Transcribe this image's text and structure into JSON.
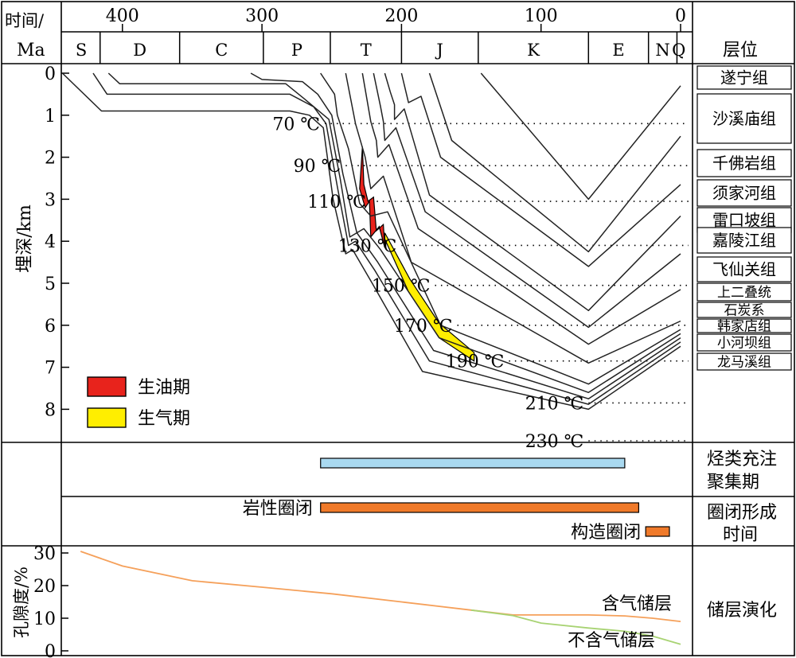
{
  "chart_data": {
    "type": "burial-history",
    "header": {
      "time_label_line1": "时间/",
      "time_label_line2": "Ma",
      "horizon_header": "层位"
    },
    "time_axis": {
      "unit": "Ma",
      "range": [
        430,
        0
      ],
      "ticks": [
        400,
        300,
        200,
        100,
        0
      ]
    },
    "periods": [
      {
        "label": "S",
        "start": 443,
        "end": 416
      },
      {
        "label": "D",
        "start": 416,
        "end": 359
      },
      {
        "label": "C",
        "start": 359,
        "end": 299
      },
      {
        "label": "P",
        "start": 299,
        "end": 251
      },
      {
        "label": "T",
        "start": 251,
        "end": 200
      },
      {
        "label": "J",
        "start": 200,
        "end": 145
      },
      {
        "label": "K",
        "start": 145,
        "end": 66
      },
      {
        "label": "E",
        "start": 66,
        "end": 23
      },
      {
        "label": "N",
        "start": 23,
        "end": 2.6
      },
      {
        "label": "Q",
        "start": 2.6,
        "end": 0
      }
    ],
    "depth_axis": {
      "label": "埋深/km",
      "range": [
        0,
        9
      ],
      "ticks": [
        0,
        1,
        2,
        3,
        4,
        5,
        6,
        7,
        8
      ]
    },
    "horizons": [
      "遂宁组",
      "沙溪庙组",
      "千佛岩组",
      "须家河组",
      "雷口坡组",
      "嘉陵江组",
      "飞仙关组",
      "上二叠统",
      "石炭系",
      "韩家店组",
      "小河坝组",
      "龙马溪组"
    ],
    "burial_curves": [
      {
        "points": [
          [
            143,
            0
          ],
          [
            66,
            3.0
          ],
          [
            0,
            0.3
          ]
        ]
      },
      {
        "points": [
          [
            180,
            0
          ],
          [
            164,
            1.6
          ],
          [
            66,
            4.25
          ],
          [
            0,
            1.5
          ]
        ]
      },
      {
        "points": [
          [
            200,
            0
          ],
          [
            195,
            0.7
          ],
          [
            186,
            0.55
          ],
          [
            172,
            2.0
          ],
          [
            66,
            4.6
          ],
          [
            0,
            2.65
          ]
        ]
      },
      {
        "points": [
          [
            212,
            0
          ],
          [
            208,
            0.45
          ],
          [
            205,
            0.75
          ],
          [
            205,
            1.1
          ],
          [
            198,
            0.85
          ],
          [
            180,
            2.9
          ],
          [
            66,
            5.65
          ],
          [
            0,
            3.4
          ]
        ]
      },
      {
        "points": [
          [
            220,
            0
          ],
          [
            215,
            0.8
          ],
          [
            213,
            1.15
          ],
          [
            212,
            1.6
          ],
          [
            204,
            1.3
          ],
          [
            183,
            3.3
          ],
          [
            66,
            6.05
          ],
          [
            0,
            4.3
          ]
        ]
      },
      {
        "points": [
          [
            228,
            0
          ],
          [
            222,
            1.15
          ],
          [
            218,
            1.6
          ],
          [
            217,
            2.0
          ],
          [
            209,
            1.7
          ],
          [
            188,
            3.7
          ],
          [
            66,
            6.45
          ],
          [
            0,
            5.15
          ]
        ]
      },
      {
        "points": [
          [
            240,
            0
          ],
          [
            233,
            1.2
          ],
          [
            226,
            2.0
          ],
          [
            222,
            2.75
          ],
          [
            213,
            2.45
          ],
          [
            193,
            4.5
          ],
          [
            66,
            6.9
          ],
          [
            0,
            5.9
          ]
        ]
      },
      {
        "points": [
          [
            258,
            0
          ],
          [
            248,
            0.5
          ],
          [
            246,
            1.0
          ],
          [
            238,
            1.8
          ],
          [
            230,
            3.1
          ],
          [
            222,
            3.4
          ],
          [
            210,
            3.3
          ],
          [
            172,
            6.0
          ],
          [
            66,
            7.4
          ],
          [
            0,
            6.1
          ]
        ]
      },
      {
        "points": [
          [
            308,
            0
          ],
          [
            300,
            0.15
          ],
          [
            271,
            0.2
          ],
          [
            260,
            0.5
          ],
          [
            250,
            1.0
          ],
          [
            242,
            2.4
          ],
          [
            232,
            3.8
          ],
          [
            227,
            3.7
          ],
          [
            215,
            4.2
          ],
          [
            173,
            6.3
          ],
          [
            66,
            7.6
          ],
          [
            0,
            6.2
          ]
        ]
      },
      {
        "points": [
          [
            410,
            0
          ],
          [
            402,
            0.25
          ],
          [
            283,
            0.25
          ],
          [
            270,
            0.6
          ],
          [
            252,
            1.1
          ],
          [
            244,
            2.5
          ],
          [
            237,
            3.9
          ],
          [
            232,
            3.8
          ],
          [
            217,
            4.5
          ],
          [
            177,
            6.6
          ],
          [
            66,
            7.75
          ],
          [
            0,
            6.3
          ]
        ]
      },
      {
        "points": [
          [
            421,
            0
          ],
          [
            411,
            0.5
          ],
          [
            280,
            0.5
          ],
          [
            263,
            0.8
          ],
          [
            254,
            1.2
          ],
          [
            246,
            2.7
          ],
          [
            238,
            4.1
          ],
          [
            233,
            4.0
          ],
          [
            219,
            4.7
          ],
          [
            180,
            6.85
          ],
          [
            66,
            7.88
          ],
          [
            0,
            6.4
          ]
        ]
      },
      {
        "points": [
          [
            443,
            0
          ],
          [
            415,
            0.9
          ],
          [
            280,
            0.9
          ],
          [
            266,
            1.0
          ],
          [
            256,
            1.3
          ],
          [
            249,
            3.0
          ],
          [
            240,
            4.3
          ],
          [
            235,
            4.2
          ],
          [
            221,
            5.0
          ],
          [
            185,
            7.1
          ],
          [
            66,
            8.0
          ],
          [
            0,
            6.5
          ]
        ]
      }
    ],
    "isotherms": [
      {
        "label": "70 ℃",
        "depth": 1.2,
        "from": 255
      },
      {
        "label": "90 ℃",
        "depth": 2.2,
        "from": 240
      },
      {
        "label": "110 ℃",
        "depth": 3.05,
        "from": 222
      },
      {
        "label": "130 ℃",
        "depth": 4.1,
        "from": 200
      },
      {
        "label": "150 ℃",
        "depth": 5.05,
        "from": 176
      },
      {
        "label": "170 ℃",
        "depth": 6.0,
        "from": 160
      },
      {
        "label": "190 ℃",
        "depth": 6.85,
        "from": 123
      },
      {
        "label": "210 ℃",
        "depth": 7.85,
        "from": 66
      },
      {
        "label": "230 ℃",
        "depth": 8.75,
        "from": 66
      }
    ],
    "oil_window": {
      "name": "生油期",
      "color": "#e8231c",
      "polygon": [
        [
          228,
          1.75
        ],
        [
          230,
          2.75
        ],
        [
          226,
          3.2
        ],
        [
          223,
          3.05
        ],
        [
          222,
          3.9
        ],
        [
          216,
          3.65
        ],
        [
          212,
          4.15
        ],
        [
          213,
          3.6
        ],
        [
          218,
          3.75
        ],
        [
          220,
          2.95
        ],
        [
          224,
          3.05
        ],
        [
          227,
          2.65
        ]
      ]
    },
    "gas_window": {
      "name": "生气期",
      "color": "#ffee00",
      "polygon": [
        [
          212,
          4.15
        ],
        [
          216,
          3.65
        ],
        [
          195,
          5.2
        ],
        [
          173,
          6.3
        ],
        [
          148,
          6.85
        ],
        [
          148,
          6.65
        ],
        [
          173,
          5.95
        ],
        [
          194,
          4.9
        ],
        [
          212,
          3.8
        ]
      ]
    },
    "legend": [
      {
        "label": "生油期",
        "color": "#e8231c"
      },
      {
        "label": "生气期",
        "color": "#ffee00"
      }
    ],
    "hydrocarbon_charging": {
      "label_line1": "烃类充注",
      "label_line2": "聚集期",
      "start": 258,
      "end": 40,
      "color": "#a9d9f0"
    },
    "trap_formation": {
      "label_line1": "圈闭形成",
      "label_line2": "时间",
      "bars": [
        {
          "label": "岩性圈闭",
          "start": 258,
          "end": 30,
          "color": "#f07a2a"
        },
        {
          "label": "构造圈闭",
          "start": 25,
          "end": 8,
          "color": "#f07a2a"
        }
      ]
    },
    "reservoir_evolution": {
      "label": "储层演化",
      "ylabel": "孔隙度/%",
      "ylim": [
        0,
        32
      ],
      "yticks": [
        0,
        10,
        20,
        30
      ],
      "series": [
        {
          "name": "含气储层",
          "color": "#f5a05a",
          "x": [
            430,
            400,
            350,
            300,
            250,
            200,
            150,
            120,
            100,
            66,
            40,
            20,
            0
          ],
          "y": [
            30.5,
            26,
            21.5,
            19.5,
            17.5,
            15,
            12.5,
            11.0,
            11.0,
            11.0,
            10.7,
            10.0,
            9.0
          ]
        },
        {
          "name": "不含气储层",
          "color": "#a8d373",
          "x": [
            150,
            120,
            100,
            66,
            40,
            20,
            0
          ],
          "y": [
            12.5,
            10.8,
            8.5,
            7.0,
            6.0,
            4.5,
            2.0
          ]
        }
      ]
    }
  }
}
